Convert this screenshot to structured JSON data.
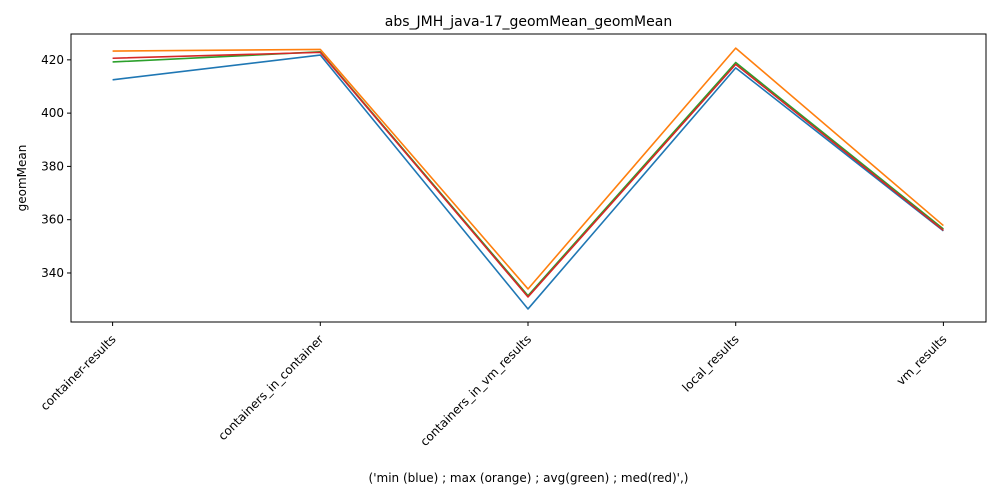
{
  "chart_data": {
    "type": "line",
    "title": "abs_JMH_java-17_geomMean_geomMean",
    "xlabel": "('min (blue) ; max (orange) ; avg(green) ; med(red)',)",
    "ylabel": "geomMean",
    "categories": [
      "container-results",
      "containers_in_container",
      "containers_in_vm_results",
      "local_results",
      "vm_results"
    ],
    "ylim": [
      321.6,
      429.7
    ],
    "yticks": [
      340,
      360,
      380,
      400,
      420
    ],
    "grid": false,
    "legend": "none",
    "series": [
      {
        "color": "#1f77b4",
        "values": [
          412.5,
          421.8,
          326.5,
          417.0,
          355.8
        ]
      },
      {
        "color": "#2ca02c",
        "values": [
          419.2,
          423.0,
          331.5,
          419.0,
          356.5
        ]
      },
      {
        "color": "#d62728",
        "values": [
          420.6,
          422.8,
          331.0,
          418.3,
          356.0
        ]
      },
      {
        "color": "#ff7f0e",
        "values": [
          423.3,
          423.9,
          334.0,
          424.4,
          357.8
        ]
      }
    ]
  }
}
